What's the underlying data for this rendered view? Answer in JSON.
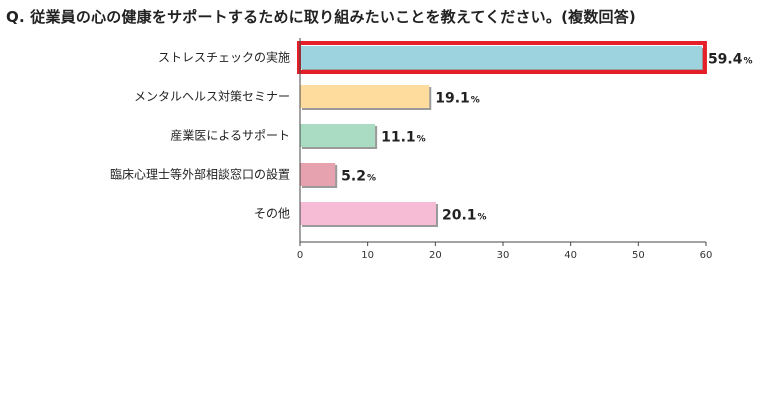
{
  "question": "Q.  従業員の心の健康をサポートするために取り組みたいことを教えてください。(複数回答)",
  "chart_data": {
    "type": "bar",
    "orientation": "horizontal",
    "categories": [
      "ストレスチェックの実施",
      "メンタルヘルス対策セミナー",
      "産業医によるサポート",
      "臨床心理士等外部相談窓口の設置",
      "その他"
    ],
    "values": [
      59.4,
      19.1,
      11.1,
      5.2,
      20.1
    ],
    "value_labels": [
      "59.4",
      "19.1",
      "11.1",
      "5.2",
      "20.1"
    ],
    "unit": "%",
    "colors": [
      "#9dd3df",
      "#fddc9e",
      "#a9dcc2",
      "#e6a2ae",
      "#f6bcd6"
    ],
    "highlight_index": 0,
    "highlight_color": "#e41f2a",
    "xlim": [
      0,
      60
    ],
    "xticks": [
      "0",
      "10",
      "20",
      "30",
      "40",
      "50",
      "60"
    ],
    "grid": false,
    "title": "",
    "xlabel": "",
    "ylabel": ""
  }
}
